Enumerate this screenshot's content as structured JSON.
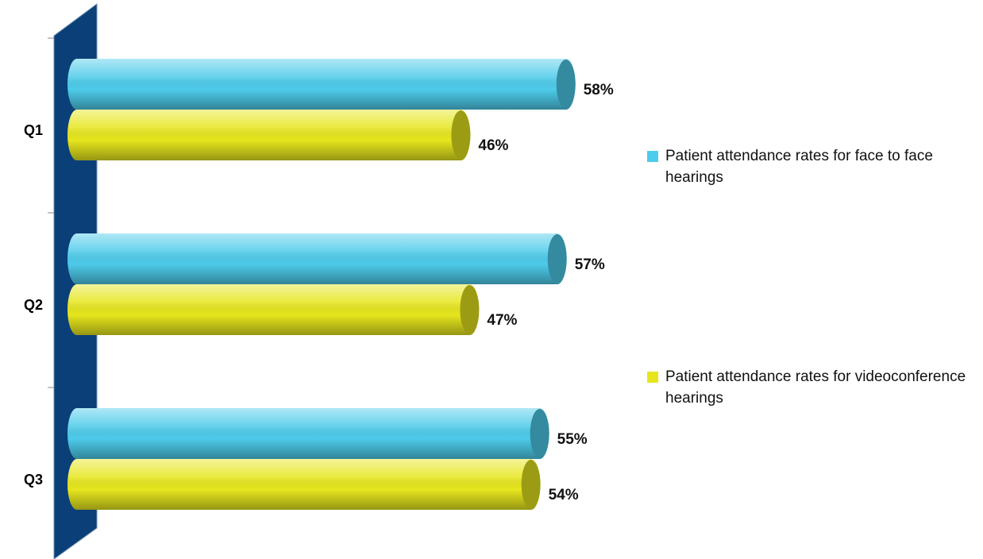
{
  "chart_data": {
    "type": "bar",
    "orientation": "horizontal",
    "categories": [
      "Q1",
      "Q2",
      "Q3"
    ],
    "series": [
      {
        "name": "Patient attendance rates for face to face hearings",
        "color": "#4dcbea",
        "values": [
          58,
          57,
          55
        ],
        "value_labels": [
          "58%",
          "57%",
          "55%"
        ]
      },
      {
        "name": "Patient attendance rates for videoconference hearings",
        "color": "#e6e61e",
        "values": [
          46,
          47,
          54
        ],
        "value_labels": [
          "46%",
          "47%",
          "54%"
        ]
      }
    ],
    "xlim": [
      0,
      100
    ]
  }
}
